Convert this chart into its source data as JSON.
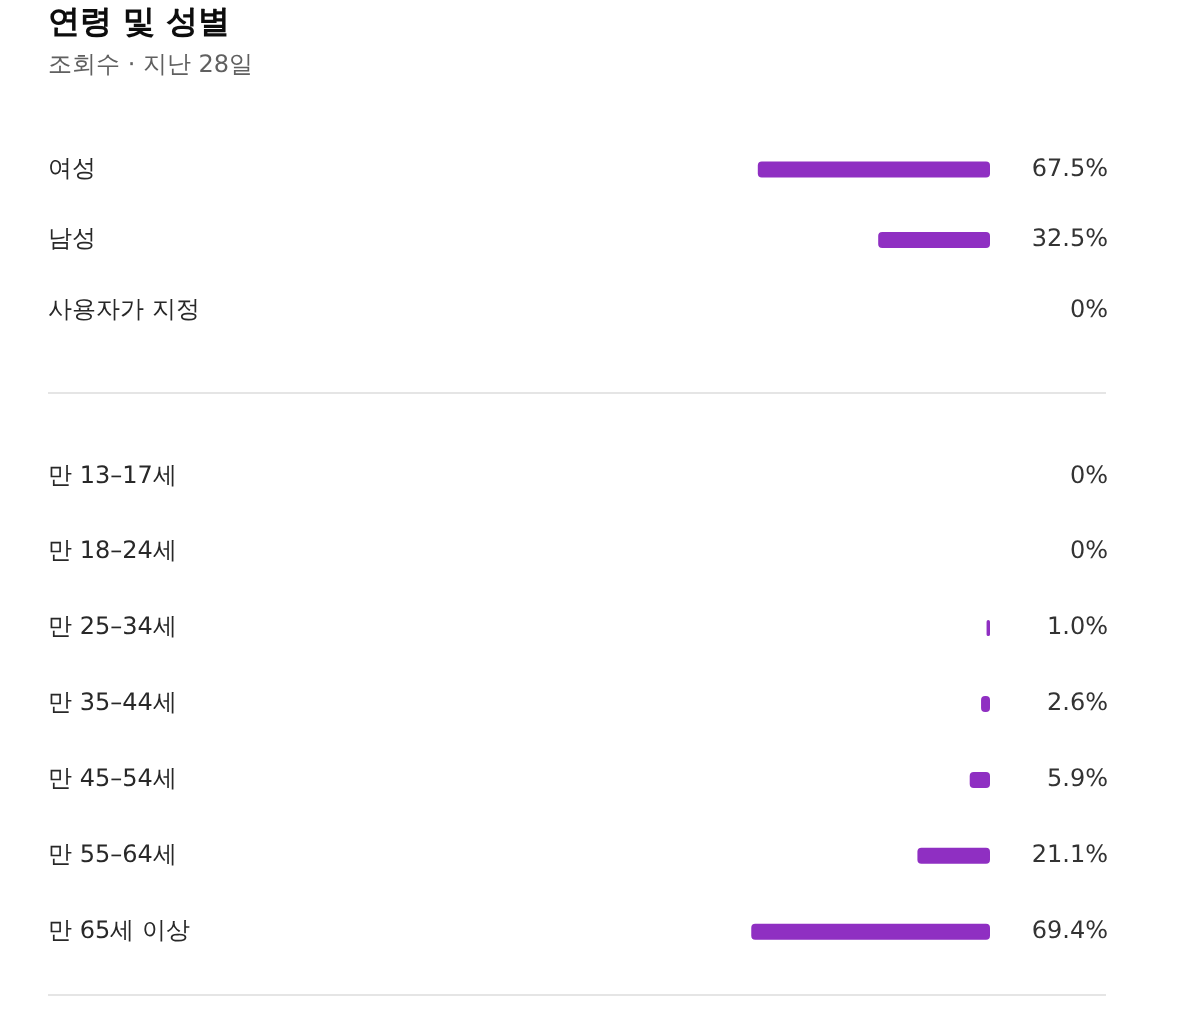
{
  "chart_data": [
    {
      "type": "bar",
      "title": "연령 및 성별",
      "subtitle": "조회수 · 지난 28일",
      "orientation": "horizontal",
      "categories": [
        "여성",
        "남성",
        "사용자가 지정"
      ],
      "values": [
        67.5,
        32.5,
        0
      ],
      "value_labels": [
        "67.5%",
        "32.5%",
        "0%"
      ],
      "color": "#8f2fc2",
      "tick_labels": "y"
    },
    {
      "type": "bar",
      "orientation": "horizontal",
      "categories": [
        "만 13–17세",
        "만 18–24세",
        "만 25–34세",
        "만 35–44세",
        "만 45–54세",
        "만 55–64세",
        "만 65세 이상"
      ],
      "values": [
        0,
        0,
        1.0,
        2.6,
        5.9,
        21.1,
        69.4
      ],
      "value_labels": [
        "0%",
        "0%",
        "1.0%",
        "2.6%",
        "5.9%",
        "21.1%",
        "69.4%"
      ],
      "color": "#8f2fc2",
      "tick_labels": "y"
    }
  ]
}
